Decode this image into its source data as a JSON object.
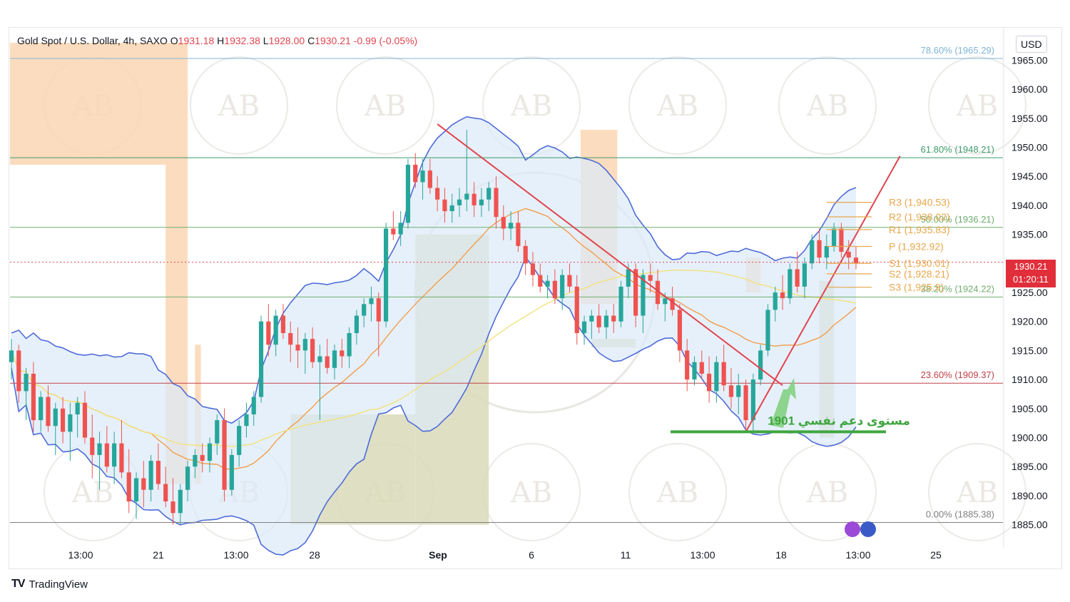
{
  "header": {
    "symbol": "Gold Spot / U.S. Dollar, 4h, SAXO",
    "open_label": "O",
    "open": "1931.18",
    "high_label": "H",
    "high": "1932.38",
    "low_label": "L",
    "low": "1928.00",
    "close_label": "C",
    "close": "1930.21",
    "change": "-0.99 (-0.05%)"
  },
  "currency": "USD",
  "brand": "TradingView",
  "last_price": {
    "price": "1930.21",
    "countdown": "01:20:11"
  },
  "colors": {
    "bull": "#26a69a",
    "bear": "#ef5350",
    "bollinger": "#4f6bd8",
    "bollinger_fill": "#dbeaf8",
    "ma_orange": "#f29d4b",
    "ma_yellow": "#f2e27a",
    "trend_red": "#e0454f",
    "support_green": "#3fa63f",
    "zone_orange": "#fbd6b3",
    "zone_olive": "#d9dbb8"
  },
  "chart_data": {
    "type": "candlestick",
    "timeframe": "4h",
    "ylim": [
      1882,
      1968
    ],
    "y_ticks": [
      "1965.00",
      "1960.00",
      "1955.00",
      "1950.00",
      "1945.00",
      "1940.00",
      "1935.00",
      "1930.00",
      "1925.00",
      "1920.00",
      "1915.00",
      "1910.00",
      "1905.00",
      "1900.00",
      "1895.00",
      "1890.00",
      "1885.00"
    ],
    "x_ticks": [
      "13:00",
      "21",
      "13:00",
      "28",
      "Sep",
      "6",
      "11",
      "13:00",
      "18",
      "13:00",
      "25"
    ],
    "candles": [
      [
        1913,
        1917,
        1910,
        1915
      ],
      [
        1915,
        1916,
        1906,
        1908
      ],
      [
        1908,
        1912,
        1903,
        1911
      ],
      [
        1911,
        1913,
        1901,
        1903
      ],
      [
        1903,
        1908,
        1901,
        1907
      ],
      [
        1907,
        1909,
        1901,
        1902
      ],
      [
        1902,
        1906,
        1897,
        1905
      ],
      [
        1905,
        1907,
        1899,
        1901
      ],
      [
        1901,
        1906,
        1896,
        1904
      ],
      [
        1904,
        1907,
        1900,
        1906
      ],
      [
        1906,
        1908,
        1899,
        1900
      ],
      [
        1900,
        1904,
        1893,
        1897
      ],
      [
        1897,
        1901,
        1891,
        1899
      ],
      [
        1899,
        1902,
        1894,
        1895
      ],
      [
        1895,
        1901,
        1892,
        1899
      ],
      [
        1899,
        1903,
        1893,
        1894
      ],
      [
        1894,
        1898,
        1887,
        1889
      ],
      [
        1889,
        1894,
        1886,
        1893
      ],
      [
        1893,
        1896,
        1888,
        1891
      ],
      [
        1891,
        1897,
        1889,
        1896
      ],
      [
        1896,
        1899,
        1891,
        1892
      ],
      [
        1892,
        1895,
        1888,
        1889
      ],
      [
        1889,
        1893,
        1885,
        1887
      ],
      [
        1887,
        1892,
        1885,
        1891
      ],
      [
        1891,
        1896,
        1889,
        1895
      ],
      [
        1895,
        1898,
        1893,
        1897
      ],
      [
        1897,
        1899,
        1894,
        1896
      ],
      [
        1896,
        1900,
        1894,
        1899
      ],
      [
        1899,
        1904,
        1897,
        1903
      ],
      [
        1903,
        1905,
        1889,
        1891
      ],
      [
        1891,
        1898,
        1890,
        1897
      ],
      [
        1897,
        1903,
        1895,
        1902
      ],
      [
        1902,
        1906,
        1900,
        1904
      ],
      [
        1904,
        1908,
        1902,
        1907
      ],
      [
        1907,
        1921,
        1906,
        1920
      ],
      [
        1920,
        1923,
        1914,
        1916
      ],
      [
        1916,
        1922,
        1914,
        1921
      ],
      [
        1921,
        1923,
        1917,
        1918
      ],
      [
        1918,
        1920,
        1913,
        1916
      ],
      [
        1916,
        1919,
        1912,
        1915
      ],
      [
        1915,
        1918,
        1911,
        1917
      ],
      [
        1917,
        1919,
        1912,
        1913
      ],
      [
        1913,
        1916,
        1903,
        1914
      ],
      [
        1914,
        1917,
        1911,
        1912
      ],
      [
        1912,
        1916,
        1910,
        1915
      ],
      [
        1915,
        1917,
        1912,
        1914
      ],
      [
        1914,
        1919,
        1912,
        1918
      ],
      [
        1918,
        1922,
        1916,
        1921
      ],
      [
        1921,
        1924,
        1919,
        1923
      ],
      [
        1923,
        1926,
        1920,
        1924
      ],
      [
        1924,
        1925,
        1914,
        1920
      ],
      [
        1920,
        1937,
        1919,
        1936
      ],
      [
        1936,
        1939,
        1934,
        1935
      ],
      [
        1935,
        1939,
        1933,
        1937
      ],
      [
        1937,
        1948,
        1936,
        1947
      ],
      [
        1947,
        1949,
        1943,
        1944
      ],
      [
        1944,
        1948,
        1941,
        1946
      ],
      [
        1946,
        1948,
        1942,
        1943
      ],
      [
        1943,
        1945,
        1939,
        1941
      ],
      [
        1941,
        1943,
        1937,
        1939
      ],
      [
        1939,
        1942,
        1937,
        1940
      ],
      [
        1940,
        1943,
        1938,
        1941
      ],
      [
        1941,
        1953,
        1939,
        1942
      ],
      [
        1942,
        1944,
        1938,
        1940
      ],
      [
        1940,
        1943,
        1938,
        1941
      ],
      [
        1941,
        1944,
        1939,
        1943
      ],
      [
        1943,
        1945,
        1936,
        1938
      ],
      [
        1938,
        1940,
        1934,
        1936
      ],
      [
        1936,
        1939,
        1934,
        1937
      ],
      [
        1937,
        1939,
        1932,
        1933
      ],
      [
        1933,
        1934,
        1928,
        1930
      ],
      [
        1930,
        1932,
        1926,
        1928
      ],
      [
        1928,
        1930,
        1925,
        1926
      ],
      [
        1926,
        1928,
        1924,
        1927
      ],
      [
        1927,
        1929,
        1923,
        1924
      ],
      [
        1924,
        1929,
        1922,
        1928
      ],
      [
        1928,
        1930,
        1925,
        1926
      ],
      [
        1926,
        1928,
        1916,
        1918
      ],
      [
        1918,
        1921,
        1916,
        1920
      ],
      [
        1920,
        1922,
        1917,
        1921
      ],
      [
        1921,
        1923,
        1918,
        1919
      ],
      [
        1919,
        1922,
        1917,
        1921
      ],
      [
        1921,
        1923,
        1918,
        1920
      ],
      [
        1920,
        1927,
        1919,
        1926
      ],
      [
        1926,
        1930,
        1924,
        1929
      ],
      [
        1929,
        1930,
        1919,
        1921
      ],
      [
        1921,
        1929,
        1918,
        1928
      ],
      [
        1928,
        1930,
        1925,
        1927
      ],
      [
        1927,
        1929,
        1922,
        1923
      ],
      [
        1923,
        1925,
        1920,
        1924
      ],
      [
        1924,
        1926,
        1921,
        1922
      ],
      [
        1922,
        1923,
        1913,
        1915
      ],
      [
        1915,
        1917,
        1908,
        1910
      ],
      [
        1910,
        1914,
        1909,
        1913
      ],
      [
        1913,
        1915,
        1910,
        1911
      ],
      [
        1911,
        1914,
        1906,
        1908
      ],
      [
        1908,
        1914,
        1906,
        1913
      ],
      [
        1913,
        1916,
        1908,
        1909
      ],
      [
        1909,
        1912,
        1905,
        1907
      ],
      [
        1907,
        1911,
        1904,
        1909
      ],
      [
        1909,
        1910,
        1901,
        1903
      ],
      [
        1903,
        1911,
        1901,
        1910
      ],
      [
        1910,
        1916,
        1909,
        1915
      ],
      [
        1915,
        1923,
        1914,
        1922
      ],
      [
        1922,
        1926,
        1920,
        1925
      ],
      [
        1925,
        1928,
        1922,
        1924
      ],
      [
        1924,
        1930,
        1923,
        1929
      ],
      [
        1929,
        1932,
        1925,
        1926
      ],
      [
        1926,
        1931,
        1924,
        1930
      ],
      [
        1930,
        1935,
        1929,
        1934
      ],
      [
        1934,
        1936,
        1930,
        1931
      ],
      [
        1931,
        1935,
        1929,
        1933
      ],
      [
        1933,
        1937,
        1932,
        1936
      ],
      [
        1936,
        1937,
        1931,
        1932
      ],
      [
        1932,
        1934,
        1929,
        1931
      ],
      [
        1931,
        1933,
        1929,
        1930
      ]
    ],
    "fibonacci": [
      {
        "label": "78.60% (1965.29)",
        "value": 1965.29,
        "color": "#7fb3d8"
      },
      {
        "label": "61.80% (1948.21)",
        "value": 1948.21,
        "color": "#3c9a6a"
      },
      {
        "label": "50.00% (1936.21)",
        "value": 1936.21,
        "color": "#6fae6f"
      },
      {
        "label": "38.20% (1924.22)",
        "value": 1924.22,
        "color": "#6fae6f"
      },
      {
        "label": "23.60% (1909.37)",
        "value": 1909.37,
        "color": "#c0424a"
      },
      {
        "label": "0.00% (1885.38)",
        "value": 1885.38,
        "color": "#808080"
      }
    ],
    "pivots": [
      {
        "label": "R3 (1,940.53)",
        "value": 1940.53
      },
      {
        "label": "R2 (1,938.02)",
        "value": 1938.02
      },
      {
        "label": "R1 (1,935.83)",
        "value": 1935.83
      },
      {
        "label": "P (1,932.92)",
        "value": 1932.92
      },
      {
        "label": "S1 (1,930.01)",
        "value": 1930.01
      },
      {
        "label": "S2 (1,928.21)",
        "value": 1928.21
      },
      {
        "label": "S3 (1,925.9)",
        "value": 1925.9
      }
    ],
    "support": {
      "value": 1901,
      "annotation": "مستوى دعم نفسي 1901"
    },
    "watermark": "AB"
  }
}
